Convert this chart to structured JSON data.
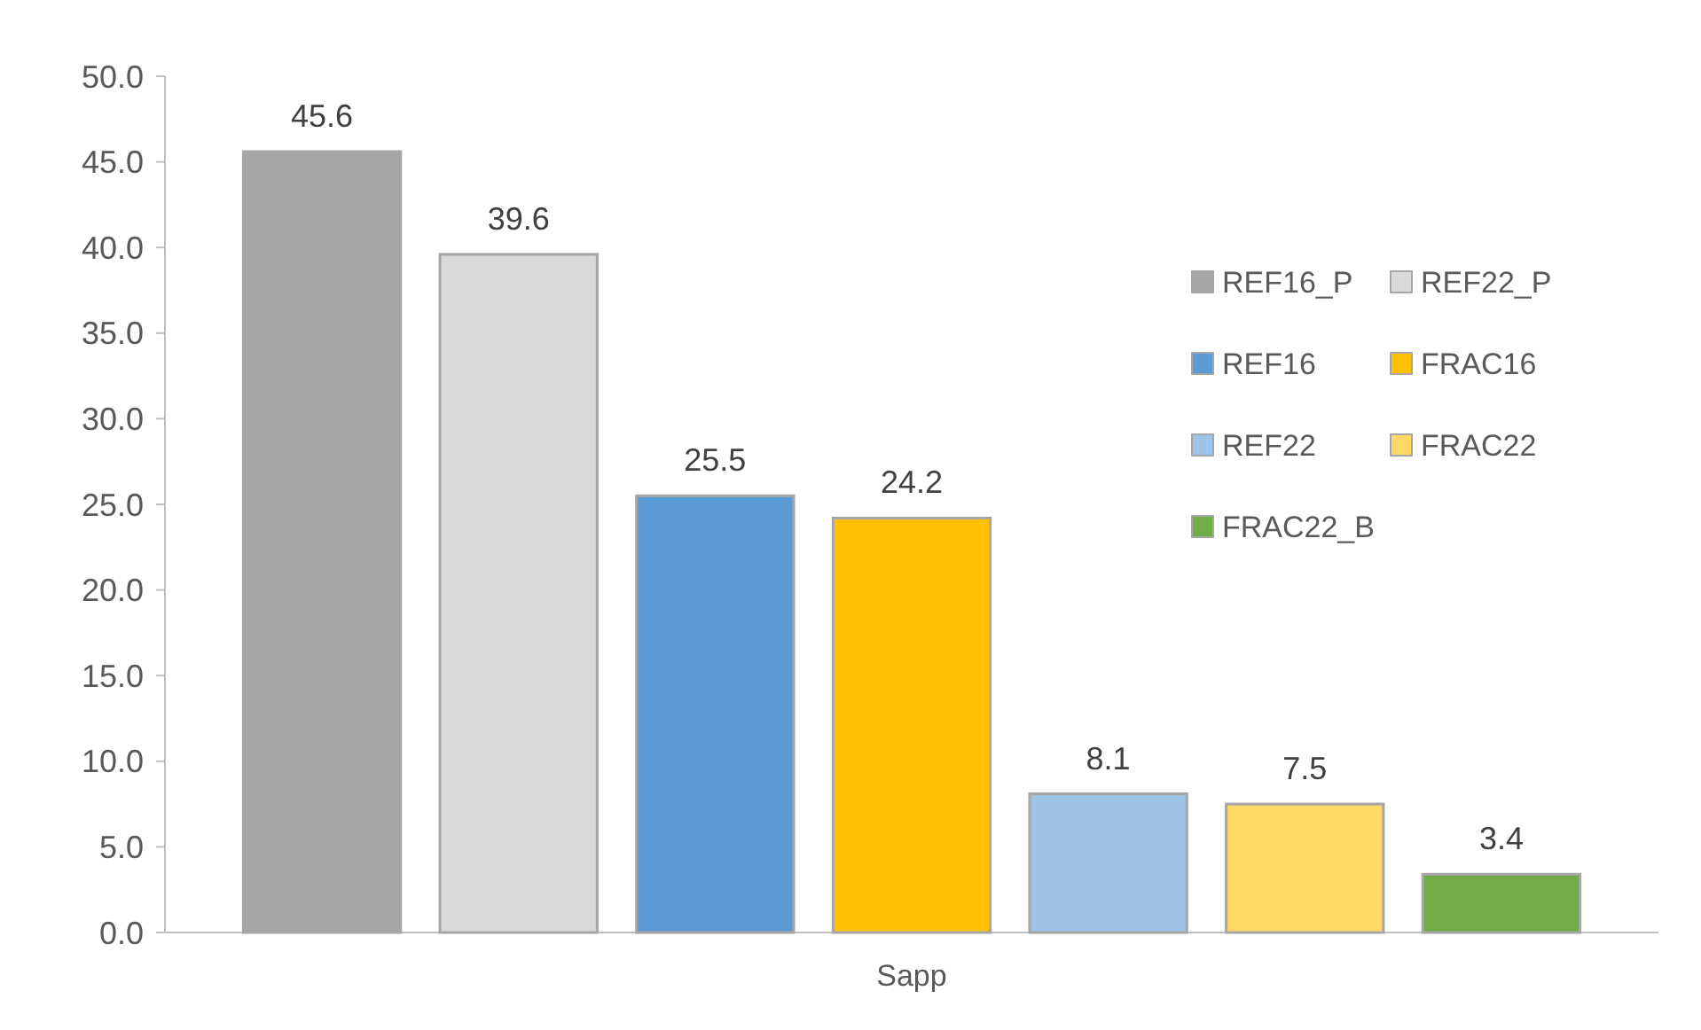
{
  "chart_data": {
    "type": "bar",
    "categories": [
      "Sapp"
    ],
    "series": [
      {
        "name": "REF16_P",
        "color": "#a6a6a6",
        "values": [
          45.6
        ]
      },
      {
        "name": "REF22_P",
        "color": "#d9d9d9",
        "values": [
          39.6
        ]
      },
      {
        "name": "REF16",
        "color": "#5b9bd5",
        "values": [
          25.5
        ]
      },
      {
        "name": "FRAC16",
        "color": "#ffc000",
        "values": [
          24.2
        ]
      },
      {
        "name": "REF22",
        "color": "#9dc3e6",
        "values": [
          8.1
        ]
      },
      {
        "name": "FRAC22",
        "color": "#ffd966",
        "values": [
          7.5
        ]
      },
      {
        "name": "FRAC22_B",
        "color": "#70ad47",
        "values": [
          3.4
        ]
      }
    ],
    "ylim": [
      0,
      50
    ],
    "yticks": [
      {
        "value": 0,
        "label": "0.0"
      },
      {
        "value": 5,
        "label": "5.0"
      },
      {
        "value": 10,
        "label": "10.0"
      },
      {
        "value": 15,
        "label": "15.0"
      },
      {
        "value": 20,
        "label": "20.0"
      },
      {
        "value": 25,
        "label": "25.0"
      },
      {
        "value": 30,
        "label": "30.0"
      },
      {
        "value": 35,
        "label": "35.0"
      },
      {
        "value": 40,
        "label": "40.0"
      },
      {
        "value": 45,
        "label": "45.0"
      },
      {
        "value": 50,
        "label": "50.0"
      }
    ],
    "data_labels": true,
    "grid": false,
    "legend": "right"
  }
}
